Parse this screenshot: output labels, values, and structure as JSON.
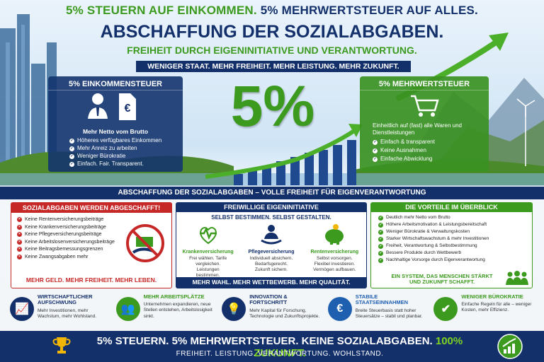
{
  "header": {
    "line1_a": "5% STEUERN AUF EINKOMMEN.",
    "line1_b": "5% MEHRWERTSTEUER AUF ALLES.",
    "title": "ABSCHAFFUNG DER SOZIALABGABEN.",
    "subtitle": "FREIHEIT DURCH EIGENINITIATIVE UND VERANTWORTUNG.",
    "banner": "WENIGER STAAT. MEHR FREIHEIT. MEHR LEISTUNG. MEHR ZUKUNFT."
  },
  "center": {
    "big": "5%"
  },
  "income_tax": {
    "title": "5% EINKOMMENSTEUER",
    "heading": "Mehr Netto vom Brutto",
    "items": [
      "Höheres verfügbares Einkommen",
      "Mehr Anreiz zu arbeiten",
      "Weniger Bürokratie",
      "Einfach. Fair. Transparent."
    ]
  },
  "vat": {
    "title": "5% MEHRWERTSTEUER",
    "heading": "Einheitlich auf (fast) alle Waren und Dienstleistungen",
    "items": [
      "Einfach & transparent",
      "Keine Ausnahmen",
      "Einfache Abwicklung"
    ]
  },
  "mid_banner": "ABSCHAFFUNG DER SOZIALABGABEN – VOLLE FREIHEIT FÜR EIGENVERANTWORTUNG",
  "abolished": {
    "title": "SOZIALABGABEN WERDEN ABGESCHAFFT!",
    "items": [
      "Keine Rentenversicherungsbeiträge",
      "Keine Krankenversicherungsbeiträge",
      "Keine Pflegeversicherungsbeiträge",
      "Keine Arbeitslosenversicherungsbeiträge",
      "Keine Beitragsbemessungsgrenzen",
      "Keine Zwangsabgaben mehr"
    ],
    "footer": "MEHR GELD. MEHR FREIHEIT. MEHR LEBEN."
  },
  "voluntary": {
    "title": "FREIWILLIGE EIGENINITIATIVE",
    "subtitle": "SELBST BESTIMMEN. SELBST GESTALTEN.",
    "columns": [
      {
        "name": "Krankenversicherung",
        "text": "Frei wählen. Tarife vergleichen. Leistungen bestimmen."
      },
      {
        "name": "Pflegeversicherung",
        "text": "Individuell absichern. Bedarfsgerecht. Zukunft sichern."
      },
      {
        "name": "Rentenversicherung",
        "text": "Selbst vorsorgen. Flexibel investieren. Vermögen aufbauen."
      }
    ],
    "footer": "MEHR WAHL. MEHR WETTBEWERB. MEHR QUALITÄT."
  },
  "advantages": {
    "title": "DIE VORTEILE IM ÜBERBLICK",
    "items": [
      "Deutlich mehr Netto vom Brutto",
      "Höhere Arbeitsmotivation & Leistungsbereitschaft",
      "Weniger Bürokratie & Verwaltungskosten",
      "Starker Wirtschaftswachstum & mehr Investitionen",
      "Freiheit, Verantwortung & Selbstbestimmung",
      "Bessere Produkte durch Wettbewerb",
      "Nachhaltige Vorsorge durch Eigenverantwortung"
    ],
    "footer": "EIN SYSTEM, DAS MENSCHEN STÄRKT UND ZUKUNFT SCHAFFT."
  },
  "benefits": [
    {
      "title": "WIRTSCHAFTLICHER AUFSCHWUNG",
      "text": "Mehr Investitionen, mehr Wachstum, mehr Wohlstand."
    },
    {
      "title": "MEHR ARBEITSPLÄTZE",
      "text": "Unternehmen expandieren, neue Stellen entstehen, Arbeitslosigkeit sinkt."
    },
    {
      "title": "INNOVATION & FORTSCHRITT",
      "text": "Mehr Kapital für Forschung, Technologie und Zukunftsprojekte."
    },
    {
      "title": "STABILE STAATSEINNAHMEN",
      "text": "Breite Steuerbasis statt hoher Steuersätze – stabil und planbar."
    },
    {
      "title": "WENIGER BÜROKRATIE",
      "text": "Einfache Regeln für alle – weniger Kosten, mehr Effizienz."
    }
  ],
  "footer": {
    "line_a": "5% STEUERN. 5% MEHRWERTSTEUER. KEINE SOZIALABGABEN.",
    "line_b": "100% ZUKUNFT.",
    "line2": "FREIHEIT. LEISTUNG. VERANTWORTUNG. WOHLSTAND."
  }
}
